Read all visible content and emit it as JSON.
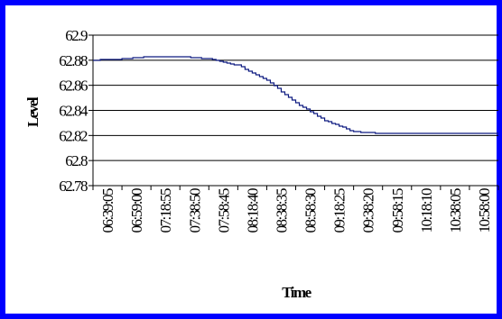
{
  "chart_data": {
    "type": "line",
    "xlabel": "Time",
    "ylabel": "Level",
    "ylim": [
      62.78,
      62.9
    ],
    "yticks": [
      "62.9",
      "62.88",
      "62.86",
      "62.84",
      "62.82",
      "62.8",
      "62.78"
    ],
    "grid": true,
    "legend": "none",
    "line_color": "#0d1a80",
    "categories": [
      "06:39:05",
      "06:59:00",
      "07:18:55",
      "07:38:50",
      "07:58:45",
      "08:18:40",
      "08:38:35",
      "08:58:30",
      "09:18:25",
      "09:38:20",
      "09:58:15",
      "10:18:10",
      "10:38:05",
      "10:58:00"
    ],
    "series": [
      {
        "values": [
          62.88,
          62.881,
          62.883,
          62.883,
          62.881,
          62.876,
          62.864,
          62.846,
          62.832,
          62.823,
          62.8215,
          62.8215,
          62.8215,
          62.822
        ]
      }
    ]
  }
}
